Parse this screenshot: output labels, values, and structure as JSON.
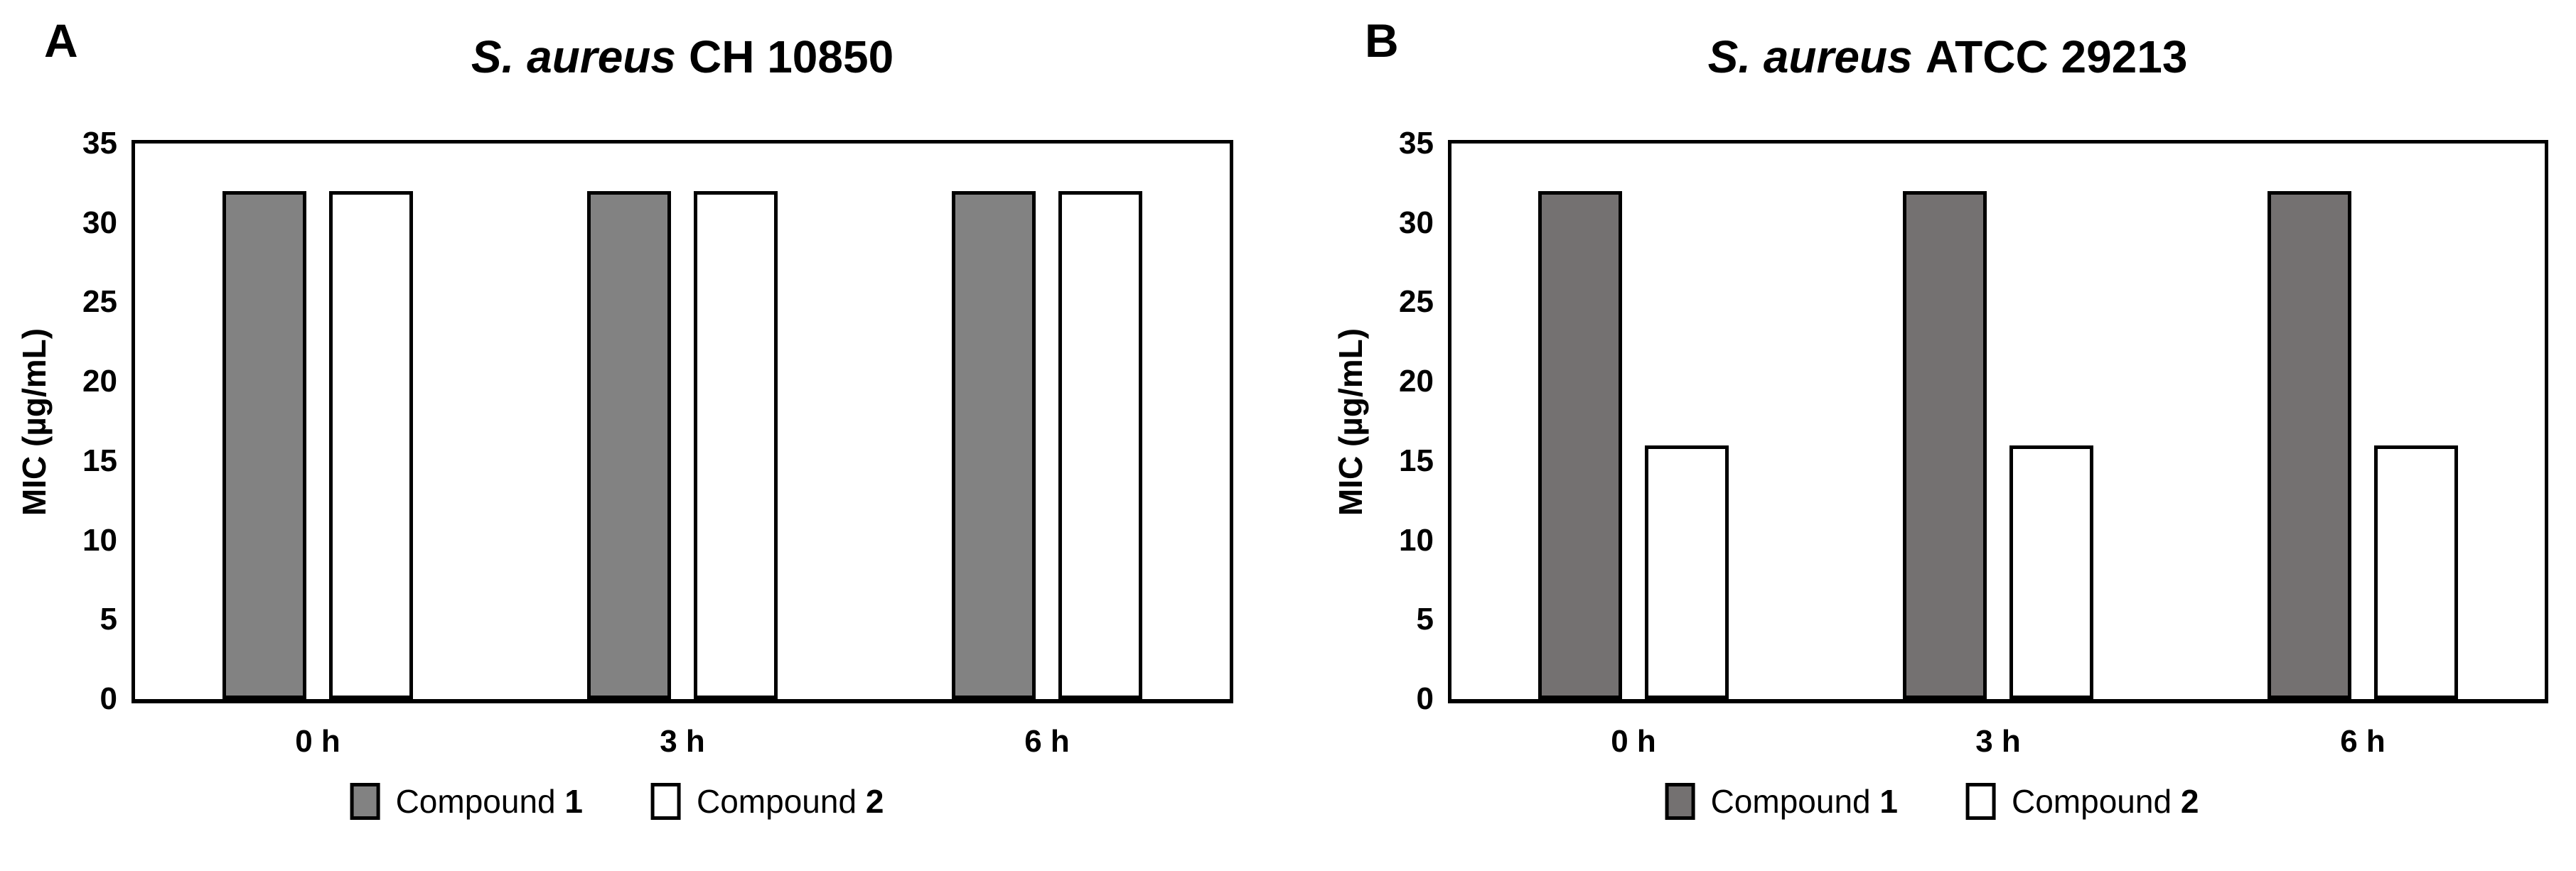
{
  "figure": {
    "background": "#ffffff",
    "text_color": "#000000"
  },
  "chart_data": [
    {
      "type": "bar",
      "panel_label": "A",
      "title_italic": "S. aureus",
      "title_rest": "CH 10850",
      "title": "S. aureus CH 10850",
      "categories": [
        "0 h",
        "3 h",
        "6 h"
      ],
      "series": [
        {
          "name_prefix": "Compound",
          "name_number": "1",
          "values": [
            32,
            32,
            32
          ],
          "fill": "#828282",
          "border": "#000000"
        },
        {
          "name_prefix": "Compound",
          "name_number": "2",
          "values": [
            32,
            32,
            32
          ],
          "fill": "#ffffff",
          "border": "#000000"
        }
      ],
      "xlabel": "",
      "ylabel": "MIC (µg/mL)",
      "ylim": [
        0,
        35
      ],
      "ytick_step": 5,
      "yticks": [
        0,
        5,
        10,
        15,
        20,
        25,
        30,
        35
      ],
      "grid": false,
      "legend_position": "bottom"
    },
    {
      "type": "bar",
      "panel_label": "B",
      "title_italic": "S. aureus",
      "title_rest": "ATCC 29213",
      "title": "S. aureus ATCC 29213",
      "categories": [
        "0 h",
        "3 h",
        "6 h"
      ],
      "series": [
        {
          "name_prefix": "Compound",
          "name_number": "1",
          "values": [
            32,
            32,
            32
          ],
          "fill": "#747171",
          "border": "#000000"
        },
        {
          "name_prefix": "Compound",
          "name_number": "2",
          "values": [
            16,
            16,
            16
          ],
          "fill": "#ffffff",
          "border": "#000000"
        }
      ],
      "xlabel": "",
      "ylabel": "MIC (µg/mL)",
      "ylim": [
        0,
        35
      ],
      "ytick_step": 5,
      "yticks": [
        0,
        5,
        10,
        15,
        20,
        25,
        30,
        35
      ],
      "grid": false,
      "legend_position": "bottom"
    }
  ]
}
